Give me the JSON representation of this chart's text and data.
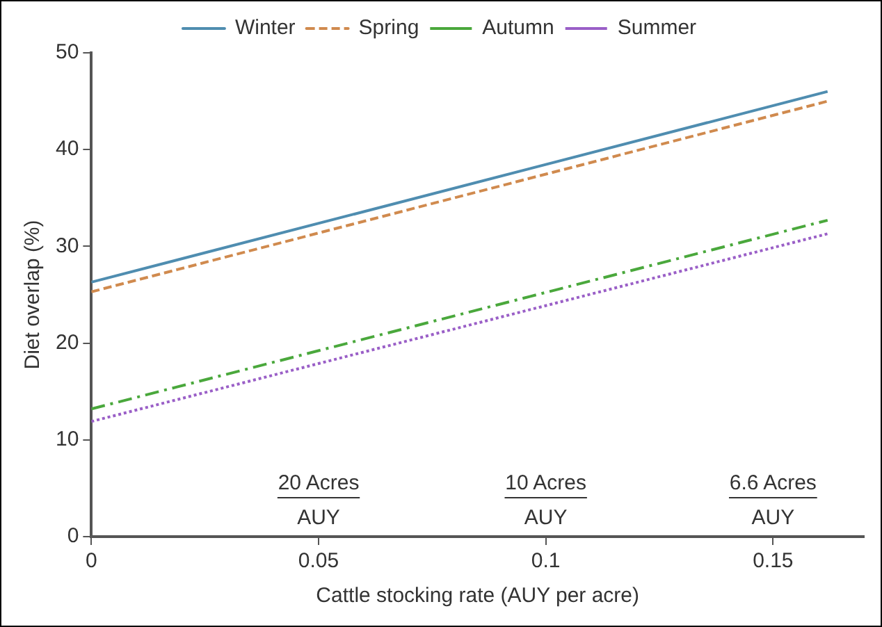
{
  "chart_data": {
    "type": "line",
    "xlabel": "Cattle stocking rate (AUY per acre)",
    "ylabel": "Diet overlap (%)",
    "x": [
      0,
      0.162
    ],
    "series": [
      {
        "name": "Winter",
        "color": "#4f8db0",
        "values": [
          26.3,
          46
        ],
        "line_style": "solid"
      },
      {
        "name": "Spring",
        "color": "#d08a4e",
        "values": [
          25.3,
          45
        ],
        "line_style": "dashed"
      },
      {
        "name": "Autumn",
        "color": "#4aa83c",
        "values": [
          13.2,
          32.7
        ],
        "line_style": "dashdot"
      },
      {
        "name": "Summer",
        "color": "#9a5fc7",
        "values": [
          11.9,
          31.3
        ],
        "line_style": "dotted"
      }
    ],
    "xlim": [
      0,
      0.17
    ],
    "xticks": [
      0,
      0.05,
      0.1,
      0.15
    ],
    "ylim": [
      0,
      50
    ],
    "yticks": [
      0,
      10,
      20,
      30,
      40,
      50
    ],
    "grid": false,
    "legend": "top",
    "marker": "none",
    "annotations": [
      "20 Acres",
      "AUY",
      "10 Acres",
      "AUY",
      "6.6 Acres",
      "AUY"
    ]
  }
}
